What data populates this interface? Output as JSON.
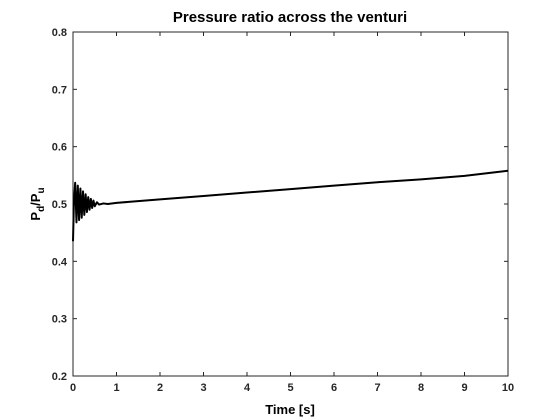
{
  "chart_data": {
    "type": "line",
    "title": "Pressure ratio across the venturi",
    "xlabel": "Time [s]",
    "ylabel": {
      "main1": "P",
      "sub1": "d",
      "slash": "/P",
      "sub2": "u"
    },
    "xlim": [
      0,
      10
    ],
    "ylim": [
      0.2,
      0.8
    ],
    "xticks": [
      0,
      1,
      2,
      3,
      4,
      5,
      6,
      7,
      8,
      9,
      10
    ],
    "xtick_labels": [
      "0",
      "1",
      "2",
      "3",
      "4",
      "5",
      "6",
      "7",
      "8",
      "9",
      "10"
    ],
    "yticks": [
      0.2,
      0.3,
      0.4,
      0.5,
      0.6,
      0.7,
      0.8
    ],
    "ytick_labels": [
      "0.2",
      "0.3",
      "0.4",
      "0.5",
      "0.6",
      "0.7",
      "0.8"
    ],
    "grid": false,
    "line_color": "#000000",
    "series": [
      {
        "x": [
          0,
          0.02,
          0.05,
          0.08,
          0.11,
          0.14,
          0.17,
          0.2,
          0.23,
          0.26,
          0.29,
          0.32,
          0.35,
          0.38,
          0.41,
          0.44,
          0.47,
          0.5,
          0.55,
          0.6,
          0.7,
          0.8,
          1,
          2,
          3,
          4,
          5,
          6,
          7,
          8,
          9,
          10
        ],
        "y": [
          0.435,
          0.5,
          0.537,
          0.468,
          0.532,
          0.472,
          0.527,
          0.476,
          0.522,
          0.481,
          0.517,
          0.486,
          0.512,
          0.49,
          0.509,
          0.493,
          0.506,
          0.496,
          0.503,
          0.499,
          0.501,
          0.5,
          0.502,
          0.508,
          0.514,
          0.52,
          0.526,
          0.532,
          0.538,
          0.543,
          0.549,
          0.558
        ]
      }
    ]
  }
}
